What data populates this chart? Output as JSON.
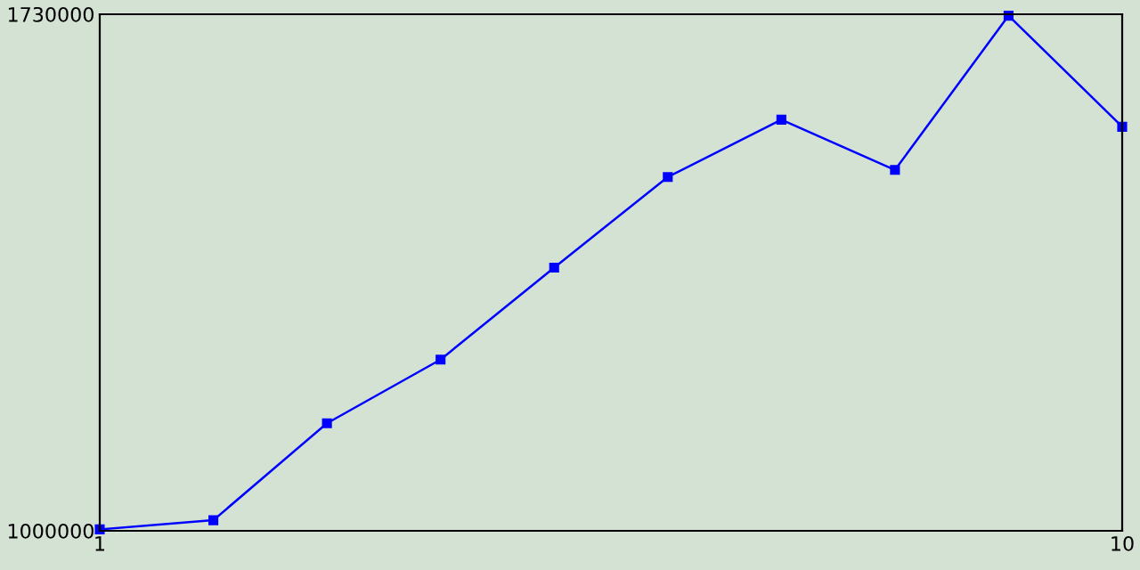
{
  "chart_data": {
    "type": "line",
    "x": [
      1,
      2,
      3,
      4,
      5,
      6,
      7,
      8,
      9,
      10
    ],
    "series": [
      {
        "color": "#0000ff",
        "values": [
          1002000,
          1015000,
          1152000,
          1242000,
          1372000,
          1500000,
          1581000,
          1510000,
          1728000,
          1571000
        ]
      }
    ],
    "xlim": [
      1,
      10
    ],
    "xticks": [
      1,
      10
    ],
    "ylim": [
      1000000,
      1730000
    ],
    "yticks": [
      1000000,
      1730000
    ],
    "marker": "square",
    "line_style": "solid",
    "grid": false,
    "legend": false
  }
}
